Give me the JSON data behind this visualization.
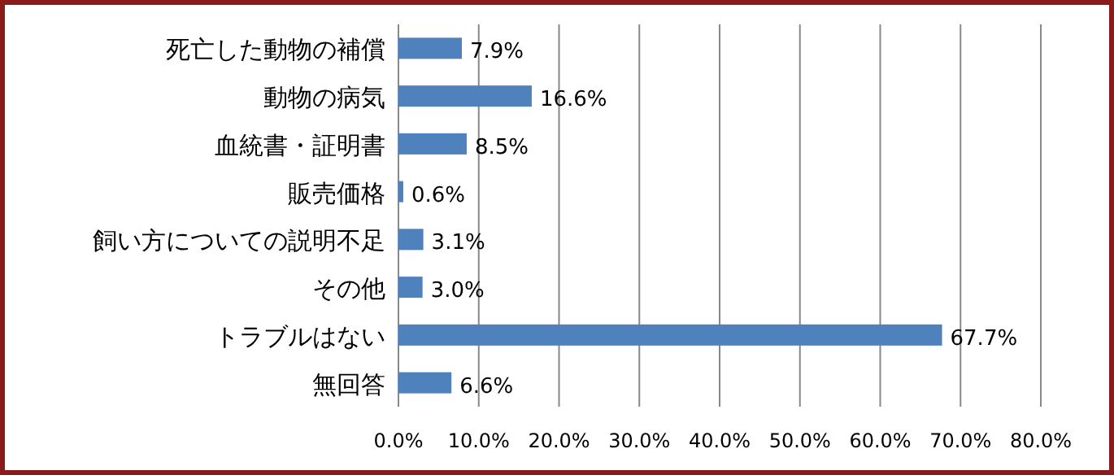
{
  "chart_data": {
    "type": "bar",
    "orientation": "horizontal",
    "categories": [
      "死亡した動物の補償",
      "動物の病気",
      "血統書・証明書",
      "販売価格",
      "飼い方についての説明不足",
      "その他",
      "トラブルはない",
      "無回答"
    ],
    "values": [
      7.9,
      16.6,
      8.5,
      0.6,
      3.1,
      3.0,
      67.7,
      6.6
    ],
    "value_labels": [
      "7.9%",
      "16.6%",
      "8.5%",
      "0.6%",
      "3.1%",
      "3.0%",
      "67.7%",
      "6.6%"
    ],
    "color": "#4f81bd",
    "xlim": [
      0,
      80
    ],
    "xticks": [
      {
        "value": 0,
        "label": "0.0%"
      },
      {
        "value": 10,
        "label": "10.0%"
      },
      {
        "value": 20,
        "label": "20.0%"
      },
      {
        "value": 30,
        "label": "30.0%"
      },
      {
        "value": 40,
        "label": "40.0%"
      },
      {
        "value": 50,
        "label": "50.0%"
      },
      {
        "value": 60,
        "label": "60.0%"
      },
      {
        "value": 70,
        "label": "70.0%"
      },
      {
        "value": 80,
        "label": "80.0%"
      }
    ],
    "grid": "x"
  }
}
